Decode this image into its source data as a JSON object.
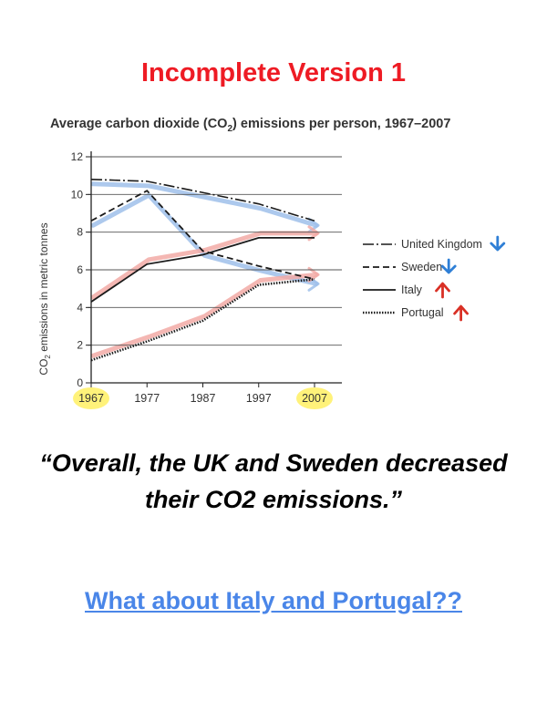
{
  "heading": "Incomplete Version 1",
  "quote": "“Overall, the UK and Sweden decreased their CO2 emissions.”",
  "link_text": "What about Italy and Portugal??",
  "colors": {
    "heading": "#ee1b24",
    "link": "#4a86e8",
    "arrow_down": "#2f7fd6",
    "arrow_up": "#d93025",
    "highlight": "#fff27a",
    "annotation_blue": "#9fc0ea",
    "annotation_red": "#f2aaa6"
  },
  "chart_data": {
    "type": "line",
    "title_prefix": "Average carbon dioxide (CO",
    "title_sub": "2",
    "title_suffix": ") emissions per person, 1967–2007",
    "ylabel_prefix": "CO",
    "ylabel_sub": "2",
    "ylabel_suffix": " emissions in metric tonnes",
    "xlabel": "",
    "x": [
      1967,
      1977,
      1987,
      1997,
      2007
    ],
    "x_tick_labels": [
      "1967",
      "1977",
      "1987",
      "1997",
      "2007"
    ],
    "highlighted_ticks": [
      "1967",
      "2007"
    ],
    "ylim": [
      0,
      12
    ],
    "y_ticks": [
      0,
      2,
      4,
      6,
      8,
      10,
      12
    ],
    "grid": true,
    "legend_position": "right",
    "series": [
      {
        "name": "United Kingdom",
        "style": "dash-dot",
        "values": [
          10.8,
          10.7,
          10.1,
          9.5,
          8.6
        ],
        "trend": "down"
      },
      {
        "name": "Sweden",
        "style": "dashed",
        "values": [
          8.6,
          10.2,
          7.0,
          6.2,
          5.5
        ],
        "trend": "down"
      },
      {
        "name": "Italy",
        "style": "solid",
        "values": [
          4.3,
          6.3,
          6.8,
          7.7,
          7.7
        ],
        "trend": "up"
      },
      {
        "name": "Portugal",
        "style": "dotted",
        "values": [
          1.2,
          2.2,
          3.3,
          5.2,
          5.5
        ],
        "trend": "up"
      }
    ]
  }
}
